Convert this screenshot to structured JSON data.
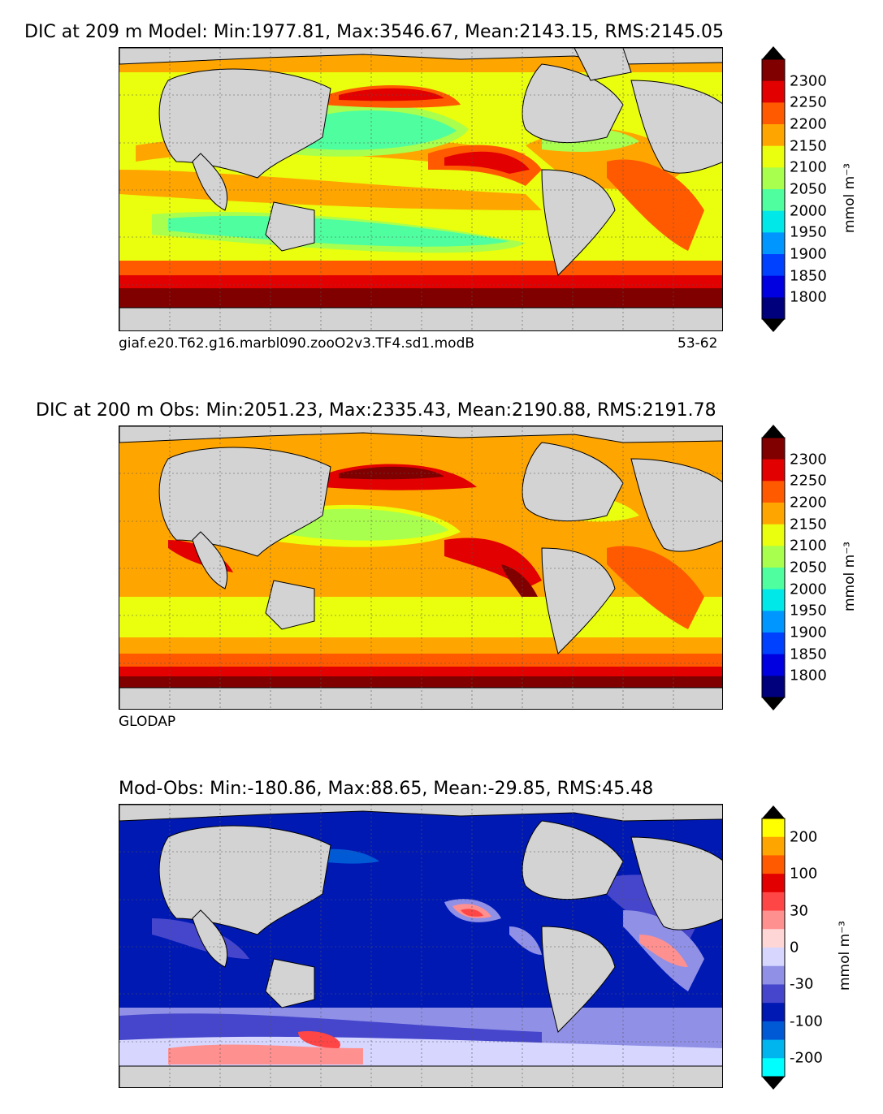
{
  "panels": [
    {
      "title": "DIC at 209 m Model: Min:1977.81, Max:3546.67, Mean:2143.15, RMS:2145.05",
      "caption_left": "giaf.e20.T62.g16.marbl090.zooO2v3.TF4.sd1.modB",
      "caption_right": "53-62",
      "colorbar": {
        "unit": "mmol m⁻³",
        "labels": [
          "2300",
          "2250",
          "2200",
          "2150",
          "2100",
          "2050",
          "2000",
          "1950",
          "1900",
          "1850",
          "1800"
        ],
        "colors": [
          "#800000",
          "#e30000",
          "#ff5a00",
          "#ffa500",
          "#e9ff0d",
          "#a9ff4d",
          "#4fff9f",
          "#00e8e8",
          "#0096ff",
          "#0040ff",
          "#0000e0",
          "#00007d"
        ]
      }
    },
    {
      "title": "DIC at 200 m Obs: Min:2051.23, Max:2335.43, Mean:2190.88, RMS:2191.78",
      "caption_left": "GLODAP",
      "caption_right": "",
      "colorbar": {
        "unit": "mmol m⁻³",
        "labels": [
          "2300",
          "2250",
          "2200",
          "2150",
          "2100",
          "2050",
          "2000",
          "1950",
          "1900",
          "1850",
          "1800"
        ],
        "colors": [
          "#800000",
          "#e30000",
          "#ff5a00",
          "#ffa500",
          "#e9ff0d",
          "#a9ff4d",
          "#4fff9f",
          "#00e8e8",
          "#0096ff",
          "#0040ff",
          "#0000e0",
          "#00007d"
        ]
      }
    },
    {
      "title": "Mod-Obs: Min:-180.86, Max:88.65, Mean:-29.85, RMS:45.48",
      "caption_left": "",
      "caption_right": "",
      "colorbar": {
        "unit": "mmol m⁻³",
        "labels": [
          "200",
          "100",
          "30",
          "0",
          "-30",
          "-100",
          "-200"
        ],
        "colors": [
          "#ffff00",
          "#ffa500",
          "#ff5a00",
          "#e30000",
          "#ff4646",
          "#ff9090",
          "#ffd6d6",
          "#d6d6ff",
          "#9090e6",
          "#4646cc",
          "#0019b3",
          "#005ad6",
          "#00b4ee",
          "#00ffff"
        ]
      }
    }
  ]
}
